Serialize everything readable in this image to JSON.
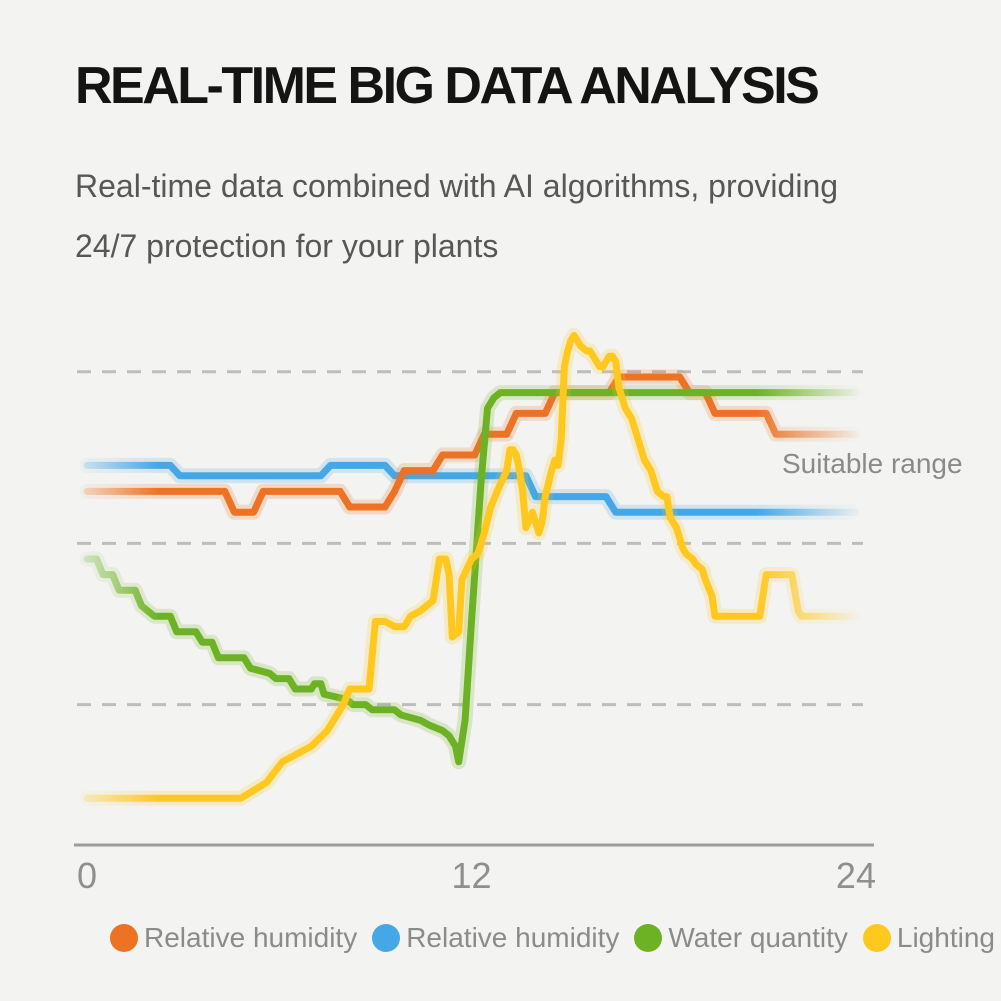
{
  "header": {
    "title": "REAL-TIME BIG DATA ANALYSIS",
    "subtitle_line1": "Real-time data combined with AI algorithms, providing",
    "subtitle_line2": "24/7 protection for your plants"
  },
  "chart_data": {
    "type": "line",
    "title": "",
    "xlabel": "",
    "ylabel": "",
    "x_range": [
      0,
      24
    ],
    "x_ticks": [
      "0",
      "12",
      "24"
    ],
    "x_tick_values": [
      0,
      12,
      24
    ],
    "ylim": [
      0,
      100
    ],
    "y_axis_note": "no y-axis labels shown; values are relative levels 0-100",
    "grid": {
      "style": "dashed",
      "levels": [
        91,
        58,
        27
      ]
    },
    "annotation": "Suitable range",
    "legend_position": "bottom",
    "draw_order": [
      1,
      0,
      2,
      3
    ],
    "colors": {
      "orange": "#ED7224",
      "blue": "#45A7E6",
      "green": "#6DB224",
      "yellow": "#FFC81F",
      "axis": "#9C9C9C",
      "gridline": "#BDBDBD",
      "tick_label": "#8F8F8F",
      "annotation_text": "#8A8A8A"
    },
    "series": [
      {
        "name": "Relative humidity",
        "color": "#ED7224",
        "points": [
          [
            0,
            68
          ],
          [
            4.3,
            68
          ],
          [
            4.6,
            64
          ],
          [
            5.2,
            64
          ],
          [
            5.5,
            68
          ],
          [
            7.9,
            68
          ],
          [
            8.2,
            65
          ],
          [
            9.3,
            65
          ],
          [
            9.6,
            68
          ],
          [
            9.9,
            72
          ],
          [
            10.8,
            72
          ],
          [
            11.1,
            75
          ],
          [
            12.1,
            75
          ],
          [
            12.4,
            79
          ],
          [
            13.1,
            79
          ],
          [
            13.4,
            83
          ],
          [
            14.3,
            83
          ],
          [
            14.6,
            87
          ],
          [
            16.3,
            87
          ],
          [
            16.6,
            90
          ],
          [
            18.5,
            90
          ],
          [
            18.8,
            87
          ],
          [
            19.3,
            87
          ],
          [
            19.6,
            83
          ],
          [
            21.2,
            83
          ],
          [
            21.5,
            79
          ],
          [
            24,
            79
          ]
        ]
      },
      {
        "name": "Relative humidity",
        "color": "#45A7E6",
        "points": [
          [
            0,
            73
          ],
          [
            2.6,
            73
          ],
          [
            2.9,
            71
          ],
          [
            7.3,
            71
          ],
          [
            7.6,
            73
          ],
          [
            9.3,
            73
          ],
          [
            9.6,
            71
          ],
          [
            13.7,
            71
          ],
          [
            14.0,
            67
          ],
          [
            16.2,
            67
          ],
          [
            16.5,
            64
          ],
          [
            24,
            64
          ]
        ]
      },
      {
        "name": "Water quantity",
        "color": "#6DB224",
        "points": [
          [
            0,
            55
          ],
          [
            0.3,
            55
          ],
          [
            0.5,
            52
          ],
          [
            0.8,
            52
          ],
          [
            1.0,
            49
          ],
          [
            1.5,
            49
          ],
          [
            1.7,
            46
          ],
          [
            2.1,
            44
          ],
          [
            2.6,
            44
          ],
          [
            2.8,
            41
          ],
          [
            3.4,
            41
          ],
          [
            3.6,
            39
          ],
          [
            3.9,
            39
          ],
          [
            4.1,
            36
          ],
          [
            4.9,
            36
          ],
          [
            5.1,
            34
          ],
          [
            5.7,
            33
          ],
          [
            5.9,
            32
          ],
          [
            6.3,
            32
          ],
          [
            6.5,
            30
          ],
          [
            7.0,
            30
          ],
          [
            7.1,
            31
          ],
          [
            7.3,
            31
          ],
          [
            7.4,
            29
          ],
          [
            8.1,
            28
          ],
          [
            8.3,
            27
          ],
          [
            8.7,
            27
          ],
          [
            8.9,
            26
          ],
          [
            9.6,
            26
          ],
          [
            9.8,
            25
          ],
          [
            10.4,
            24
          ],
          [
            10.7,
            23
          ],
          [
            11.1,
            22
          ],
          [
            11.3,
            21
          ],
          [
            11.5,
            19
          ],
          [
            11.6,
            16
          ],
          [
            11.8,
            24
          ],
          [
            12.0,
            43
          ],
          [
            12.3,
            70
          ],
          [
            12.5,
            84
          ],
          [
            12.7,
            86
          ],
          [
            12.9,
            87
          ],
          [
            24,
            87
          ]
        ]
      },
      {
        "name": "Lighting",
        "color": "#FFC81F",
        "points": [
          [
            0,
            9
          ],
          [
            4.8,
            9
          ],
          [
            5.6,
            12
          ],
          [
            6.1,
            16
          ],
          [
            6.7,
            18
          ],
          [
            7.0,
            19
          ],
          [
            7.5,
            22
          ],
          [
            7.8,
            25
          ],
          [
            8.0,
            27
          ],
          [
            8.2,
            30
          ],
          [
            8.6,
            30
          ],
          [
            8.8,
            30
          ],
          [
            9.0,
            43
          ],
          [
            9.3,
            43
          ],
          [
            9.6,
            42
          ],
          [
            9.9,
            42
          ],
          [
            10.1,
            44
          ],
          [
            10.4,
            45
          ],
          [
            10.8,
            47
          ],
          [
            10.9,
            51
          ],
          [
            11.0,
            55
          ],
          [
            11.2,
            55
          ],
          [
            11.3,
            52
          ],
          [
            11.4,
            40
          ],
          [
            11.6,
            41
          ],
          [
            11.7,
            51
          ],
          [
            12.0,
            55
          ],
          [
            12.2,
            56
          ],
          [
            12.4,
            60
          ],
          [
            12.6,
            65
          ],
          [
            12.8,
            68
          ],
          [
            13.1,
            72
          ],
          [
            13.2,
            76
          ],
          [
            13.3,
            76
          ],
          [
            13.4,
            75
          ],
          [
            13.5,
            72
          ],
          [
            13.6,
            68
          ],
          [
            13.7,
            61
          ],
          [
            13.9,
            64
          ],
          [
            14.0,
            62
          ],
          [
            14.1,
            60
          ],
          [
            14.2,
            62
          ],
          [
            14.3,
            67
          ],
          [
            14.5,
            72
          ],
          [
            14.6,
            74
          ],
          [
            14.7,
            73
          ],
          [
            14.8,
            78
          ],
          [
            14.9,
            92
          ],
          [
            15.0,
            95
          ],
          [
            15.1,
            97
          ],
          [
            15.2,
            98
          ],
          [
            15.3,
            97
          ],
          [
            15.4,
            96
          ],
          [
            15.6,
            95
          ],
          [
            15.7,
            95
          ],
          [
            15.8,
            94
          ],
          [
            16.0,
            92
          ],
          [
            16.1,
            92
          ],
          [
            16.3,
            94
          ],
          [
            16.4,
            94
          ],
          [
            16.5,
            93
          ],
          [
            16.6,
            88
          ],
          [
            16.8,
            84
          ],
          [
            17.0,
            82
          ],
          [
            17.2,
            78
          ],
          [
            17.4,
            74
          ],
          [
            17.6,
            72
          ],
          [
            17.8,
            68
          ],
          [
            18.0,
            67
          ],
          [
            18.1,
            67
          ],
          [
            18.2,
            63
          ],
          [
            18.4,
            61
          ],
          [
            18.6,
            57
          ],
          [
            18.7,
            56
          ],
          [
            18.9,
            55
          ],
          [
            19.0,
            54
          ],
          [
            19.2,
            53
          ],
          [
            19.3,
            51
          ],
          [
            19.5,
            48
          ],
          [
            19.6,
            44
          ],
          [
            21.0,
            44
          ],
          [
            21.2,
            52
          ],
          [
            22.0,
            52
          ],
          [
            22.2,
            45
          ],
          [
            22.3,
            44
          ],
          [
            24,
            44
          ]
        ]
      }
    ]
  }
}
